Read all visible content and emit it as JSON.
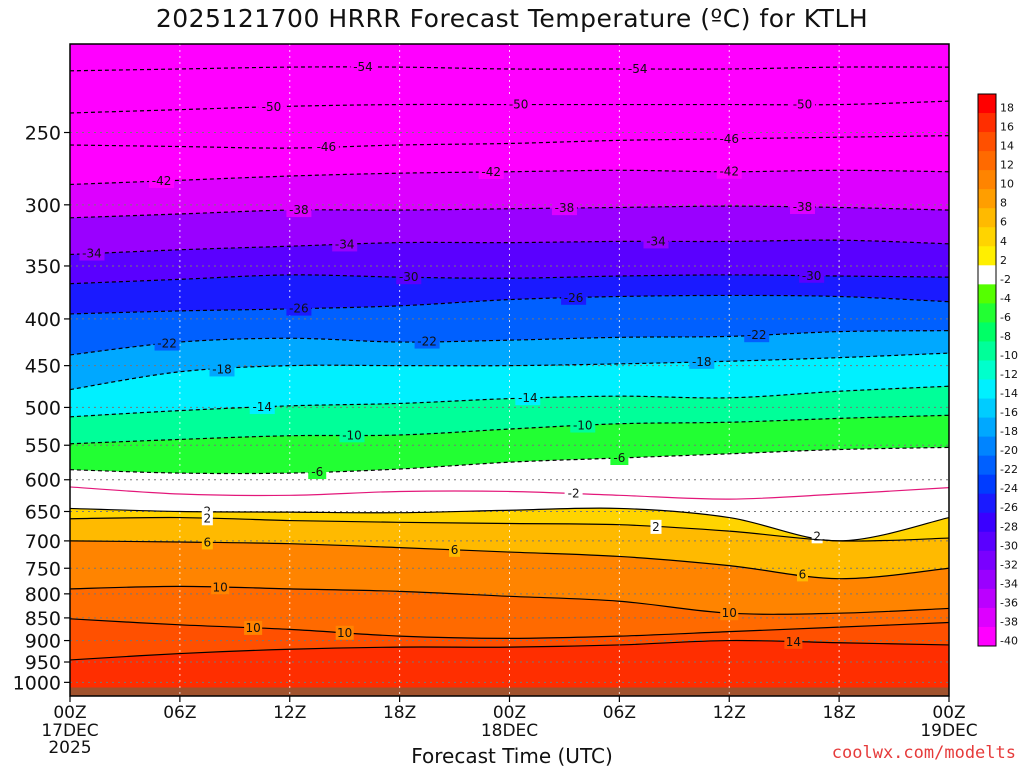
{
  "title": "2025121700 HRRR Forecast Temperature (ºC) for KTLH",
  "xaxis_title": "Forecast Time (UTC)",
  "credit": {
    "text": "coolwx.com/modelts",
    "color": "#e63b3b"
  },
  "chart_data": {
    "type": "contour",
    "title": "2025121700 HRRR Forecast Temperature (ºC) for KTLH",
    "xlabel": "Forecast Time (UTC)",
    "ylabel": "",
    "x_range_hours": [
      0,
      48
    ],
    "x_ticks": [
      {
        "hour": 0,
        "label": "00Z",
        "sub": [
          "17DEC",
          "2025"
        ]
      },
      {
        "hour": 6,
        "label": "06Z",
        "sub": []
      },
      {
        "hour": 12,
        "label": "12Z",
        "sub": []
      },
      {
        "hour": 18,
        "label": "18Z",
        "sub": []
      },
      {
        "hour": 24,
        "label": "00Z",
        "sub": [
          "18DEC"
        ]
      },
      {
        "hour": 30,
        "label": "06Z",
        "sub": []
      },
      {
        "hour": 36,
        "label": "12Z",
        "sub": []
      },
      {
        "hour": 42,
        "label": "18Z",
        "sub": []
      },
      {
        "hour": 48,
        "label": "00Z",
        "sub": [
          "19DEC"
        ]
      }
    ],
    "y_axis": "pressure (hPa), log scale, inverted",
    "y_range_hpa": [
      1035,
      200
    ],
    "y_ticks": [
      250,
      300,
      350,
      400,
      450,
      500,
      550,
      600,
      650,
      700,
      750,
      800,
      850,
      900,
      950,
      1000
    ],
    "grid_pressure_levels": [
      250,
      300,
      350,
      400,
      450,
      500,
      550,
      600,
      650,
      700,
      750,
      800,
      850,
      900,
      950,
      1000
    ],
    "contours": [
      {
        "value": -54,
        "p": [
          214,
          213,
          212,
          212,
          213,
          213,
          213,
          212,
          212
        ],
        "labels": [
          {
            "hour": 16,
            "text": "-54"
          },
          {
            "hour": 31,
            "text": "-54"
          }
        ]
      },
      {
        "value": -50,
        "p": [
          238,
          236,
          234,
          233,
          233,
          233,
          233,
          233,
          231
        ],
        "labels": [
          {
            "hour": 11,
            "text": "-50"
          },
          {
            "hour": 24.5,
            "text": "-50"
          },
          {
            "hour": 40,
            "text": "-50"
          }
        ]
      },
      {
        "value": -46,
        "p": [
          258,
          259,
          260,
          258,
          257,
          255,
          254,
          253,
          252
        ],
        "labels": [
          {
            "hour": 14,
            "text": "-46"
          },
          {
            "hour": 36,
            "text": "-46"
          }
        ]
      },
      {
        "value": -42,
        "p": [
          285,
          282,
          279,
          277,
          276,
          275,
          276,
          275,
          276
        ],
        "labels": [
          {
            "hour": 5,
            "text": "-42"
          },
          {
            "hour": 23,
            "text": "-42"
          },
          {
            "hour": 36,
            "text": "-42"
          }
        ]
      },
      {
        "value": -38,
        "p": [
          310,
          307,
          304,
          304,
          303,
          302,
          301,
          302,
          304
        ],
        "labels": [
          {
            "hour": 12.5,
            "text": "-38"
          },
          {
            "hour": 27,
            "text": "-38"
          },
          {
            "hour": 40,
            "text": "-38"
          }
        ]
      },
      {
        "value": -34,
        "p": [
          340,
          336,
          333,
          330,
          330,
          329,
          329,
          328,
          331
        ],
        "labels": [
          {
            "hour": 1.2,
            "text": "-34"
          },
          {
            "hour": 15,
            "text": "-34"
          },
          {
            "hour": 32,
            "text": "-34"
          }
        ]
      },
      {
        "value": -30,
        "p": [
          366,
          362,
          358,
          360,
          361,
          359,
          358,
          359,
          360
        ],
        "labels": [
          {
            "hour": 18.5,
            "text": "-30"
          },
          {
            "hour": 40.5,
            "text": "-30"
          }
        ]
      },
      {
        "value": -26,
        "p": [
          395,
          392,
          390,
          387,
          381,
          378,
          377,
          378,
          383
        ],
        "labels": [
          {
            "hour": 12.5,
            "text": "-26"
          },
          {
            "hour": 27.5,
            "text": "-26"
          }
        ]
      },
      {
        "value": -22,
        "p": [
          438,
          424,
          420,
          424,
          422,
          419,
          418,
          413,
          412
        ],
        "labels": [
          {
            "hour": 5.3,
            "text": "-22"
          },
          {
            "hour": 19.5,
            "text": "-22"
          },
          {
            "hour": 37.5,
            "text": "-22"
          }
        ]
      },
      {
        "value": -18,
        "p": [
          478,
          457,
          450,
          450,
          450,
          448,
          445,
          441,
          436
        ],
        "labels": [
          {
            "hour": 8.3,
            "text": "-18"
          },
          {
            "hour": 34.5,
            "text": "-18"
          }
        ]
      },
      {
        "value": -14,
        "p": [
          512,
          504,
          498,
          495,
          489,
          486,
          488,
          480,
          474
        ],
        "labels": [
          {
            "hour": 10.5,
            "text": "-14"
          },
          {
            "hour": 25,
            "text": "-14"
          }
        ]
      },
      {
        "value": -10,
        "p": [
          548,
          542,
          537,
          536,
          528,
          521,
          519,
          514,
          510
        ],
        "labels": [
          {
            "hour": 15.4,
            "text": "-10"
          },
          {
            "hour": 28,
            "text": "-10"
          }
        ]
      },
      {
        "value": -6,
        "p": [
          585,
          590,
          590,
          584,
          574,
          568,
          562,
          556,
          553
        ],
        "labels": [
          {
            "hour": 13.5,
            "text": "-6"
          },
          {
            "hour": 30,
            "text": "-6"
          }
        ]
      },
      {
        "value": -2,
        "p": [
          611,
          622,
          624,
          618,
          618,
          624,
          630,
          622,
          612
        ],
        "labels": [
          {
            "hour": 27.5,
            "text": "-2"
          }
        ]
      },
      {
        "value": 2,
        "p": [
          645,
          650,
          651,
          652,
          648,
          645,
          660,
          700,
          660
        ],
        "labels": [
          {
            "hour": 7.5,
            "text": "2"
          },
          {
            "hour": 40.8,
            "text": "2"
          }
        ]
      },
      {
        "value": 2,
        "p": [
          662,
          660,
          665,
          668,
          670,
          672,
          683,
          700,
          695
        ],
        "labels": [
          {
            "hour": 7.5,
            "text": "2"
          },
          {
            "hour": 32,
            "text": "2"
          }
        ]
      },
      {
        "value": 6,
        "p": [
          700,
          702,
          705,
          712,
          720,
          728,
          745,
          770,
          750
        ],
        "labels": [
          {
            "hour": 7.5,
            "text": "6"
          },
          {
            "hour": 21,
            "text": "6"
          },
          {
            "hour": 40,
            "text": "6"
          }
        ]
      },
      {
        "value": 10,
        "p": [
          790,
          785,
          790,
          795,
          805,
          815,
          840,
          840,
          830
        ],
        "labels": [
          {
            "hour": 8.2,
            "text": "10"
          },
          {
            "hour": 36,
            "text": "10"
          }
        ]
      },
      {
        "value": 10,
        "p": [
          852,
          865,
          875,
          890,
          895,
          890,
          880,
          870,
          860
        ],
        "labels": [
          {
            "hour": 10,
            "text": "10"
          },
          {
            "hour": 15,
            "text": "10"
          }
        ]
      },
      {
        "value": 14,
        "p": [
          945,
          930,
          920,
          915,
          915,
          910,
          900,
          905,
          910
        ],
        "labels": [
          {
            "hour": 39.5,
            "text": "14"
          }
        ]
      }
    ],
    "colorbar": {
      "labels": [
        "18",
        "16",
        "14",
        "12",
        "10",
        "8",
        "6",
        "4",
        "2",
        "-2",
        "-4",
        "-6",
        "-8",
        "-10",
        "-12",
        "-14",
        "-16",
        "-18",
        "-20",
        "-22",
        "-24",
        "-26",
        "-28",
        "-30",
        "-32",
        "-34",
        "-36",
        "-38",
        "-40"
      ],
      "colors": [
        "#ff0000",
        "#ff2e00",
        "#ff5000",
        "#ff6a00",
        "#ff8400",
        "#ff9e00",
        "#ffba00",
        "#ffd400",
        "#ffef00",
        "#ffffff",
        "#55ff00",
        "#22ff33",
        "#00ff66",
        "#00ff99",
        "#00ffcc",
        "#00f0ff",
        "#00ccff",
        "#00a8ff",
        "#0084ff",
        "#0060ff",
        "#003cff",
        "#1a1aff",
        "#3a00ff",
        "#5a00ff",
        "#7a00ff",
        "#9a00ff",
        "#bb00ff",
        "#dd00ff",
        "#ff00ff"
      ]
    }
  }
}
